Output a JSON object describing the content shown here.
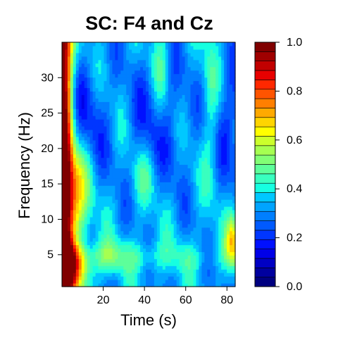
{
  "chart_data": {
    "type": "heatmap",
    "title": "SC: F4 and Cz",
    "xlabel": "Time (s)",
    "ylabel": "Frequency (Hz)",
    "xlim": [
      0,
      84
    ],
    "ylim": [
      0.5,
      35
    ],
    "xticks": [
      "20",
      "40",
      "60",
      "80"
    ],
    "yticks": [
      "5",
      "10",
      "15",
      "20",
      "25",
      "30"
    ],
    "colorbar": {
      "ticks": [
        "0.0",
        "0.2",
        "0.4",
        "0.6",
        "0.8",
        "1.0"
      ],
      "range": [
        0,
        1
      ],
      "levels": 20,
      "colors": [
        "#000080",
        "#00009f",
        "#0000c4",
        "#0000e8",
        "#0010ff",
        "#0036ff",
        "#005aff",
        "#007fff",
        "#00a4ff",
        "#00c8ff",
        "#16ffe1",
        "#39ffbf",
        "#5dff9a",
        "#82ff75",
        "#a6ff51",
        "#cbff2c",
        "#ffff00",
        "#ffd500",
        "#ffa900",
        "#ff7f00",
        "#ff5400",
        "#ff2800",
        "#e80000",
        "#c10000",
        "#9f0000",
        "#800000"
      ]
    },
    "grid": false
  }
}
